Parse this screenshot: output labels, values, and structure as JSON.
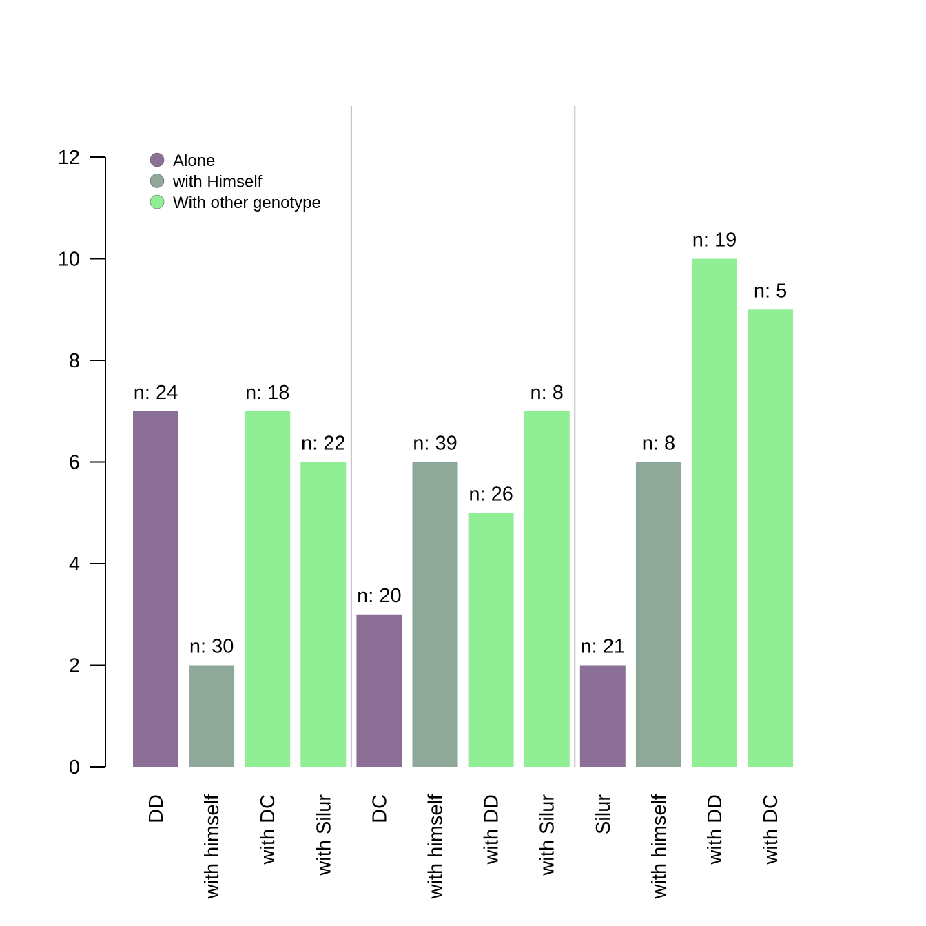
{
  "chart_data": {
    "type": "bar",
    "title": "",
    "xlabel": "",
    "ylabel": "",
    "ylim": [
      0,
      12
    ],
    "yticks": [
      0,
      2,
      4,
      6,
      8,
      10,
      12
    ],
    "grid": false,
    "legend_position": "top-left",
    "categories": [
      "DD",
      "with himself",
      "with DC",
      "with Silur",
      "DC",
      "with himself",
      "with DD",
      "with Silur",
      "Silur",
      "with himself",
      "with DD",
      "with DC"
    ],
    "values": [
      7,
      2,
      7,
      6,
      3,
      6,
      5,
      7,
      2,
      6,
      10,
      9
    ],
    "n_labels": [
      "n: 24",
      "n: 30",
      "n: 18",
      "n: 22",
      "n: 20",
      "n: 39",
      "n: 26",
      "n: 8",
      "n: 21",
      "n: 8",
      "n: 19",
      "n: 5"
    ],
    "groups": [
      "Alone",
      "with Himself",
      "With other genotype",
      "With other genotype",
      "Alone",
      "with Himself",
      "With other genotype",
      "With other genotype",
      "Alone",
      "with Himself",
      "With other genotype",
      "With other genotype"
    ],
    "legend": [
      {
        "label": "Alone",
        "color": "#8b6f96"
      },
      {
        "label": "with Himself",
        "color": "#8ea99a"
      },
      {
        "label": "With other genotype",
        "color": "#90ee95"
      }
    ],
    "separators_after_index": [
      3,
      7
    ]
  }
}
